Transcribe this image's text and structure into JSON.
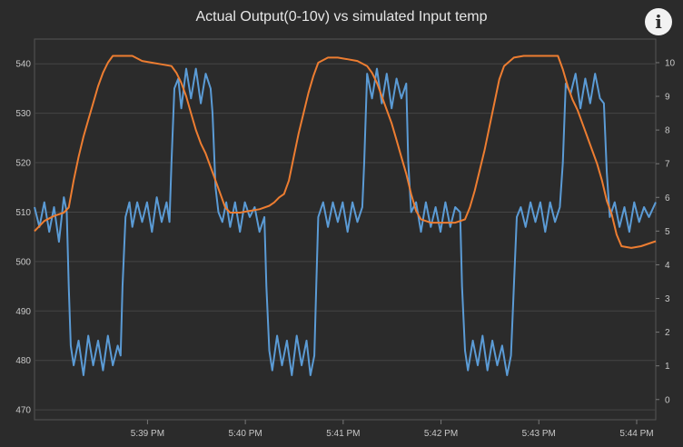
{
  "header": {
    "title": "Actual Output(0-10v) vs simulated Input temp",
    "info_icon": "info-icon",
    "info_glyph": "i"
  },
  "chart_data": {
    "type": "line",
    "title": "Actual Output(0-10v) vs simulated Input temp",
    "xlabel": "",
    "ylabel": "",
    "x_ticks": [
      "5:39 PM",
      "5:40 PM",
      "5:41 PM",
      "5:42 PM",
      "5:43 PM",
      "5:44 PM"
    ],
    "x_range_minutes": [
      0,
      6.35
    ],
    "y_left_ticks": [
      470,
      480,
      490,
      500,
      510,
      520,
      530,
      540
    ],
    "y_left_range": [
      468,
      545
    ],
    "y_right_ticks": [
      0,
      1,
      2,
      3,
      4,
      5,
      6,
      7,
      8,
      9,
      10
    ],
    "y_right_range": [
      -0.6,
      10.7
    ],
    "grid": "horizontal",
    "series": [
      {
        "axis": "left",
        "color": "#5b9bd5",
        "points": [
          [
            0,
            511
          ],
          [
            0.05,
            507
          ],
          [
            0.1,
            512
          ],
          [
            0.15,
            506
          ],
          [
            0.2,
            511
          ],
          [
            0.25,
            504
          ],
          [
            0.3,
            513
          ],
          [
            0.33,
            510
          ],
          [
            0.35,
            495
          ],
          [
            0.37,
            483
          ],
          [
            0.4,
            479
          ],
          [
            0.45,
            484
          ],
          [
            0.5,
            477
          ],
          [
            0.55,
            485
          ],
          [
            0.6,
            479
          ],
          [
            0.65,
            484
          ],
          [
            0.7,
            478
          ],
          [
            0.75,
            485
          ],
          [
            0.8,
            479
          ],
          [
            0.85,
            483
          ],
          [
            0.88,
            481
          ],
          [
            0.9,
            495
          ],
          [
            0.93,
            509
          ],
          [
            0.97,
            512
          ],
          [
            1.0,
            507
          ],
          [
            1.05,
            512
          ],
          [
            1.1,
            508
          ],
          [
            1.15,
            512
          ],
          [
            1.2,
            506
          ],
          [
            1.25,
            513
          ],
          [
            1.3,
            508
          ],
          [
            1.35,
            512
          ],
          [
            1.38,
            508
          ],
          [
            1.4,
            520
          ],
          [
            1.43,
            535
          ],
          [
            1.47,
            537
          ],
          [
            1.5,
            531
          ],
          [
            1.55,
            539
          ],
          [
            1.6,
            533
          ],
          [
            1.65,
            539
          ],
          [
            1.7,
            532
          ],
          [
            1.75,
            538
          ],
          [
            1.8,
            535
          ],
          [
            1.82,
            530
          ],
          [
            1.85,
            515
          ],
          [
            1.88,
            510
          ],
          [
            1.92,
            508
          ],
          [
            1.96,
            512
          ],
          [
            2.0,
            507
          ],
          [
            2.05,
            512
          ],
          [
            2.1,
            506
          ],
          [
            2.15,
            512
          ],
          [
            2.2,
            509
          ],
          [
            2.25,
            511
          ],
          [
            2.3,
            506
          ],
          [
            2.35,
            509
          ],
          [
            2.37,
            495
          ],
          [
            2.4,
            482
          ],
          [
            2.43,
            478
          ],
          [
            2.48,
            485
          ],
          [
            2.53,
            479
          ],
          [
            2.58,
            484
          ],
          [
            2.63,
            477
          ],
          [
            2.68,
            485
          ],
          [
            2.73,
            479
          ],
          [
            2.78,
            484
          ],
          [
            2.82,
            477
          ],
          [
            2.86,
            481
          ],
          [
            2.88,
            495
          ],
          [
            2.9,
            509
          ],
          [
            2.95,
            512
          ],
          [
            3.0,
            507
          ],
          [
            3.05,
            512
          ],
          [
            3.1,
            508
          ],
          [
            3.15,
            512
          ],
          [
            3.2,
            506
          ],
          [
            3.25,
            512
          ],
          [
            3.3,
            508
          ],
          [
            3.35,
            511
          ],
          [
            3.37,
            520
          ],
          [
            3.4,
            538
          ],
          [
            3.45,
            533
          ],
          [
            3.5,
            539
          ],
          [
            3.55,
            532
          ],
          [
            3.6,
            538
          ],
          [
            3.65,
            531
          ],
          [
            3.7,
            537
          ],
          [
            3.75,
            533
          ],
          [
            3.8,
            536
          ],
          [
            3.82,
            520
          ],
          [
            3.85,
            510
          ],
          [
            3.9,
            512
          ],
          [
            3.95,
            506
          ],
          [
            4.0,
            512
          ],
          [
            4.05,
            507
          ],
          [
            4.1,
            511
          ],
          [
            4.15,
            506
          ],
          [
            4.2,
            512
          ],
          [
            4.25,
            507
          ],
          [
            4.3,
            511
          ],
          [
            4.35,
            510
          ],
          [
            4.37,
            495
          ],
          [
            4.4,
            482
          ],
          [
            4.43,
            478
          ],
          [
            4.48,
            484
          ],
          [
            4.53,
            479
          ],
          [
            4.58,
            485
          ],
          [
            4.63,
            478
          ],
          [
            4.68,
            484
          ],
          [
            4.73,
            479
          ],
          [
            4.78,
            483
          ],
          [
            4.83,
            477
          ],
          [
            4.87,
            481
          ],
          [
            4.9,
            495
          ],
          [
            4.93,
            509
          ],
          [
            4.97,
            511
          ],
          [
            5.02,
            507
          ],
          [
            5.07,
            512
          ],
          [
            5.12,
            508
          ],
          [
            5.17,
            512
          ],
          [
            5.22,
            506
          ],
          [
            5.27,
            512
          ],
          [
            5.32,
            508
          ],
          [
            5.37,
            511
          ],
          [
            5.4,
            520
          ],
          [
            5.43,
            536
          ],
          [
            5.48,
            534
          ],
          [
            5.53,
            538
          ],
          [
            5.58,
            531
          ],
          [
            5.63,
            537
          ],
          [
            5.68,
            532
          ],
          [
            5.73,
            538
          ],
          [
            5.78,
            533
          ],
          [
            5.82,
            532
          ],
          [
            5.85,
            518
          ],
          [
            5.88,
            509
          ],
          [
            5.93,
            512
          ],
          [
            5.98,
            507
          ],
          [
            6.03,
            511
          ],
          [
            6.08,
            506
          ],
          [
            6.13,
            512
          ],
          [
            6.18,
            508
          ],
          [
            6.23,
            511
          ],
          [
            6.28,
            509
          ],
          [
            6.35,
            512
          ]
        ]
      },
      {
        "axis": "right",
        "color": "#ed7d31",
        "points": [
          [
            0,
            5.0
          ],
          [
            0.1,
            5.3
          ],
          [
            0.2,
            5.45
          ],
          [
            0.3,
            5.55
          ],
          [
            0.35,
            5.7
          ],
          [
            0.4,
            6.5
          ],
          [
            0.45,
            7.2
          ],
          [
            0.5,
            7.8
          ],
          [
            0.55,
            8.3
          ],
          [
            0.6,
            8.8
          ],
          [
            0.65,
            9.3
          ],
          [
            0.7,
            9.7
          ],
          [
            0.75,
            10.0
          ],
          [
            0.8,
            10.2
          ],
          [
            0.9,
            10.2
          ],
          [
            1.0,
            10.2
          ],
          [
            1.1,
            10.05
          ],
          [
            1.2,
            10.0
          ],
          [
            1.3,
            9.95
          ],
          [
            1.4,
            9.9
          ],
          [
            1.45,
            9.7
          ],
          [
            1.5,
            9.4
          ],
          [
            1.55,
            9.0
          ],
          [
            1.6,
            8.5
          ],
          [
            1.65,
            8.0
          ],
          [
            1.7,
            7.6
          ],
          [
            1.75,
            7.3
          ],
          [
            1.8,
            6.9
          ],
          [
            1.85,
            6.5
          ],
          [
            1.9,
            6.1
          ],
          [
            1.95,
            5.7
          ],
          [
            2.0,
            5.55
          ],
          [
            2.1,
            5.55
          ],
          [
            2.2,
            5.6
          ],
          [
            2.3,
            5.65
          ],
          [
            2.4,
            5.75
          ],
          [
            2.45,
            5.85
          ],
          [
            2.5,
            6.0
          ],
          [
            2.55,
            6.1
          ],
          [
            2.6,
            6.5
          ],
          [
            2.65,
            7.2
          ],
          [
            2.7,
            7.9
          ],
          [
            2.75,
            8.5
          ],
          [
            2.8,
            9.1
          ],
          [
            2.85,
            9.6
          ],
          [
            2.9,
            10.0
          ],
          [
            3.0,
            10.15
          ],
          [
            3.1,
            10.15
          ],
          [
            3.2,
            10.1
          ],
          [
            3.3,
            10.05
          ],
          [
            3.4,
            9.9
          ],
          [
            3.45,
            9.7
          ],
          [
            3.5,
            9.4
          ],
          [
            3.55,
            9.0
          ],
          [
            3.6,
            8.6
          ],
          [
            3.65,
            8.2
          ],
          [
            3.7,
            7.7
          ],
          [
            3.75,
            7.2
          ],
          [
            3.8,
            6.7
          ],
          [
            3.85,
            6.1
          ],
          [
            3.9,
            5.6
          ],
          [
            3.95,
            5.35
          ],
          [
            4.05,
            5.25
          ],
          [
            4.2,
            5.25
          ],
          [
            4.3,
            5.25
          ],
          [
            4.4,
            5.35
          ],
          [
            4.45,
            5.7
          ],
          [
            4.5,
            6.2
          ],
          [
            4.55,
            6.8
          ],
          [
            4.6,
            7.4
          ],
          [
            4.65,
            8.1
          ],
          [
            4.7,
            8.8
          ],
          [
            4.75,
            9.5
          ],
          [
            4.8,
            9.9
          ],
          [
            4.9,
            10.15
          ],
          [
            5.0,
            10.2
          ],
          [
            5.1,
            10.2
          ],
          [
            5.2,
            10.2
          ],
          [
            5.35,
            10.2
          ],
          [
            5.4,
            9.8
          ],
          [
            5.45,
            9.3
          ],
          [
            5.5,
            8.9
          ],
          [
            5.55,
            8.6
          ],
          [
            5.6,
            8.2
          ],
          [
            5.65,
            7.8
          ],
          [
            5.7,
            7.4
          ],
          [
            5.75,
            7.0
          ],
          [
            5.8,
            6.5
          ],
          [
            5.85,
            5.9
          ],
          [
            5.9,
            5.5
          ],
          [
            5.95,
            4.9
          ],
          [
            6.0,
            4.55
          ],
          [
            6.1,
            4.5
          ],
          [
            6.2,
            4.55
          ],
          [
            6.35,
            4.7
          ]
        ]
      }
    ]
  }
}
